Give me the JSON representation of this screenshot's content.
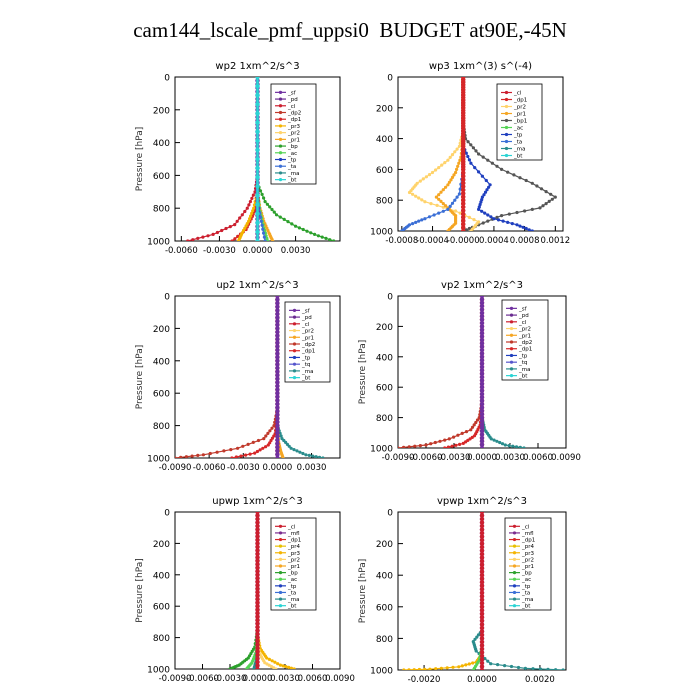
{
  "title": "cam144_lscale_pmf_uppsi0  BUDGET at90E,-45N",
  "colors": {
    "sf": "#7030a0",
    "pd": "#6a2c91",
    "cl": "#cc1f2f",
    "dp2": "#c0392b",
    "dp1": "#d62728",
    "pr3": "#f4b400",
    "pr2": "#ffd36b",
    "pr1": "#f5a623",
    "pr4": "#e8c000",
    "bp": "#2ca02c",
    "ac": "#55d455",
    "tp": "#1f3fbf",
    "ta": "#3b6fd6",
    "ma": "#2a8c8c",
    "bt": "#2ad4d4",
    "mfl": "#7b2c8f",
    "tq": "#5555cc"
  },
  "chart_data": [
    {
      "type": "line",
      "title": "wp2  1xm^2/s^3",
      "ylabel": "Pressure [hPa]",
      "xlim": [
        -0.0065,
        0.0065
      ],
      "ylim": [
        1000,
        0
      ],
      "xticks": [
        -0.006,
        -0.003,
        0.0,
        0.003
      ],
      "xticklabels": [
        "-0.0060",
        "-0.0030",
        "0.0000",
        "0.0030"
      ],
      "yticks": [
        0,
        200,
        400,
        600,
        800,
        1000
      ],
      "yticklabels": [
        "0",
        "200",
        "400",
        "600",
        "800",
        "1000"
      ],
      "legend": [
        "_sf",
        "_pd",
        "_cl",
        "_dp2",
        "_dp1",
        "_pr3",
        "_pr2",
        "_pr1",
        "_bp",
        "_ac",
        "_tp",
        "_ta",
        "_ma",
        "_bt"
      ],
      "series": [
        {
          "name": "_cl",
          "x": [
            0,
            0,
            -0.0002,
            -0.0008,
            -0.0018,
            -0.0035,
            -0.0055
          ],
          "y": [
            0,
            600,
            700,
            800,
            900,
            960,
            1000
          ]
        },
        {
          "name": "_dp1",
          "x": [
            0,
            0,
            -0.0001,
            -0.0004,
            -0.0009,
            -0.002
          ],
          "y": [
            0,
            700,
            780,
            850,
            930,
            1000
          ]
        },
        {
          "name": "_pr3",
          "x": [
            0,
            0,
            -0.0003,
            -0.0007,
            -0.0012,
            -0.0015
          ],
          "y": [
            0,
            700,
            800,
            880,
            950,
            1000
          ]
        },
        {
          "name": "_pr1",
          "x": [
            0,
            0,
            0.0002,
            0.0005,
            0.0009,
            0.0012
          ],
          "y": [
            0,
            700,
            800,
            880,
            950,
            1000
          ]
        },
        {
          "name": "_bp",
          "x": [
            0,
            0,
            0.0006,
            0.0015,
            0.003,
            0.0045,
            0.006
          ],
          "y": [
            0,
            650,
            760,
            840,
            910,
            960,
            1000
          ]
        },
        {
          "name": "_ac",
          "x": [
            0,
            0,
            0.0002,
            0.0005,
            0.0008
          ],
          "y": [
            0,
            700,
            820,
            920,
            1000
          ]
        },
        {
          "name": "_ta",
          "x": [
            0,
            0,
            0.0003,
            0.0006
          ],
          "y": [
            0,
            750,
            880,
            1000
          ]
        },
        {
          "name": "_sf",
          "x": [
            0,
            0,
            0,
            0,
            0,
            0
          ],
          "y": [
            0,
            200,
            400,
            600,
            800,
            1000
          ]
        },
        {
          "name": "_bt",
          "x": [
            0,
            0,
            0
          ],
          "y": [
            0,
            500,
            1000
          ]
        }
      ]
    },
    {
      "type": "line",
      "title": "wp3  1xm^(3) s^(-4)",
      "ylabel": "",
      "xlim": [
        -0.00085,
        0.0013
      ],
      "ylim": [
        1000,
        0
      ],
      "xticks": [
        -0.0008,
        -0.0004,
        0.0,
        0.0004,
        0.0008,
        0.0012
      ],
      "xticklabels": [
        "-0.0008",
        "-0.0004",
        "-0.0000",
        "0.0004",
        "0.0008",
        "0.0012"
      ],
      "yticks": [
        0,
        200,
        400,
        600,
        800,
        1000
      ],
      "yticklabels": [
        "0",
        "200",
        "400",
        "600",
        "800",
        "1000"
      ],
      "legend": [
        "_cl",
        "_dp1",
        "_pr2",
        "_pr1",
        "_bp1",
        "_ac",
        "_tp",
        "_ta",
        "_ma",
        "_bt"
      ],
      "series": [
        {
          "name": "_bp1",
          "x": [
            0,
            0,
            3e-05,
            0.0002,
            0.0005,
            0.0009,
            0.0012,
            0.001,
            0.0005,
            0.0002,
            0.0
          ],
          "y": [
            0,
            300,
            400,
            500,
            600,
            690,
            780,
            850,
            900,
            960,
            1000
          ]
        },
        {
          "name": "_pr2",
          "x": [
            0,
            0,
            -5e-05,
            -0.0002,
            -0.0004,
            -0.0006,
            -0.0007,
            -0.0005,
            -0.0001,
            0.0002,
            0.0001
          ],
          "y": [
            0,
            350,
            450,
            540,
            620,
            690,
            750,
            810,
            870,
            940,
            1000
          ]
        },
        {
          "name": "_pr1",
          "x": [
            0,
            0,
            -3e-05,
            -0.0001,
            -0.0002,
            -0.00035,
            -0.0002,
            -0.0001,
            -0.0001,
            -0.0002
          ],
          "y": [
            0,
            400,
            520,
            620,
            700,
            780,
            850,
            900,
            950,
            1000
          ]
        },
        {
          "name": "_tp",
          "x": [
            0,
            0,
            0.0001,
            0.00035,
            0.00025,
            0.0002,
            0.0004,
            0.0007,
            0.0009
          ],
          "y": [
            0,
            450,
            560,
            700,
            780,
            860,
            920,
            960,
            1000
          ]
        },
        {
          "name": "_ta",
          "x": [
            0,
            0,
            -5e-05,
            -0.0002,
            -0.0005,
            -0.0007,
            -0.0008
          ],
          "y": [
            0,
            600,
            760,
            860,
            920,
            960,
            1000
          ]
        },
        {
          "name": "_cl",
          "x": [
            0,
            0,
            0,
            0,
            0,
            0,
            0
          ],
          "y": [
            0,
            150,
            300,
            450,
            600,
            800,
            1000
          ]
        },
        {
          "name": "_dp1",
          "x": [
            0,
            0,
            0,
            0,
            0,
            0,
            0
          ],
          "y": [
            0,
            150,
            300,
            450,
            600,
            800,
            1000
          ]
        }
      ]
    },
    {
      "type": "line",
      "title": "up2  1xm^2/s^3",
      "ylabel": "Pressure [hPa]",
      "xlim": [
        -0.009,
        0.0055
      ],
      "ylim": [
        1000,
        0
      ],
      "xticks": [
        -0.009,
        -0.006,
        -0.003,
        0.0,
        0.003
      ],
      "xticklabels": [
        "-0.0090",
        "-0.0060",
        "-0.0030",
        "0.0000",
        "0.0030"
      ],
      "yticks": [
        0,
        200,
        400,
        600,
        800,
        1000
      ],
      "yticklabels": [
        "0",
        "200",
        "400",
        "600",
        "800",
        "1000"
      ],
      "legend": [
        "_sf",
        "_pd",
        "_cl",
        "_pr2",
        "_pr1",
        "_dp2",
        "_dp1",
        "_tp",
        "_tq",
        "_ma",
        "_bt"
      ],
      "series": [
        {
          "name": "_dp2",
          "x": [
            0,
            0,
            -0.0003,
            -0.0012,
            -0.0035,
            -0.0065,
            -0.009
          ],
          "y": [
            0,
            700,
            800,
            880,
            940,
            980,
            1000
          ]
        },
        {
          "name": "_dp1",
          "x": [
            0,
            0,
            -0.0002,
            -0.0008,
            -0.002,
            -0.004
          ],
          "y": [
            0,
            750,
            850,
            920,
            970,
            1000
          ]
        },
        {
          "name": "_ma",
          "x": [
            0,
            0,
            0.0004,
            0.0012,
            0.0025,
            0.004
          ],
          "y": [
            0,
            800,
            880,
            940,
            980,
            1000
          ]
        },
        {
          "name": "_pr1",
          "x": [
            0,
            0,
            0.0001,
            0.0003,
            0.0005
          ],
          "y": [
            0,
            800,
            900,
            960,
            1000
          ]
        },
        {
          "name": "_cl",
          "x": [
            0,
            0,
            0,
            0,
            0,
            0
          ],
          "y": [
            0,
            200,
            400,
            600,
            800,
            1000
          ]
        },
        {
          "name": "_sf",
          "x": [
            0,
            0,
            0,
            0,
            0,
            0
          ],
          "y": [
            0,
            200,
            400,
            600,
            800,
            1000
          ]
        }
      ]
    },
    {
      "type": "line",
      "title": "vp2  1xm^2/s^3",
      "ylabel": "Pressure [hPa]",
      "xlim": [
        -0.009,
        0.009
      ],
      "ylim": [
        1000,
        0
      ],
      "xticks": [
        -0.009,
        -0.006,
        -0.003,
        0.0,
        0.003,
        0.006,
        0.009
      ],
      "xticklabels": [
        "-0.0090",
        "-0.0060",
        "-0.0030",
        "0.0000",
        "0.0030",
        "0.0060",
        "0.0090"
      ],
      "yticks": [
        0,
        200,
        400,
        600,
        800,
        1000
      ],
      "yticklabels": [
        "0",
        "200",
        "400",
        "600",
        "800",
        "1000"
      ],
      "legend": [
        "_sf",
        "_pd",
        "_cl",
        "_pr2",
        "_pr1",
        "_dp2",
        "_dp1",
        "_tp",
        "_tq",
        "_ma",
        "_bt"
      ],
      "series": [
        {
          "name": "_dp2",
          "x": [
            0,
            0,
            -0.0003,
            -0.0012,
            -0.0035,
            -0.006,
            -0.009
          ],
          "y": [
            0,
            700,
            800,
            880,
            940,
            980,
            1000
          ]
        },
        {
          "name": "_dp1",
          "x": [
            0,
            0,
            -0.0002,
            -0.0008,
            -0.002,
            -0.004
          ],
          "y": [
            0,
            750,
            850,
            920,
            970,
            1000
          ]
        },
        {
          "name": "_ma",
          "x": [
            0,
            0,
            0.0003,
            0.001,
            0.0025,
            0.0045
          ],
          "y": [
            0,
            800,
            880,
            940,
            980,
            1000
          ]
        },
        {
          "name": "_cl",
          "x": [
            0,
            0,
            0,
            0,
            0,
            0
          ],
          "y": [
            0,
            200,
            400,
            600,
            800,
            1000
          ]
        },
        {
          "name": "_sf",
          "x": [
            0,
            0,
            0,
            0,
            0,
            0
          ],
          "y": [
            0,
            200,
            400,
            600,
            800,
            1000
          ]
        }
      ]
    },
    {
      "type": "line",
      "title": "upwp  1xm^2/s^3",
      "ylabel": "Pressure [hPa]",
      "xlim": [
        -0.009,
        0.009
      ],
      "ylim": [
        1000,
        0
      ],
      "xticks": [
        -0.009,
        -0.006,
        -0.003,
        0.0,
        0.003,
        0.006,
        0.009
      ],
      "xticklabels": [
        "-0.0090",
        "-0.0060",
        "-0.0030",
        "0.0000",
        "0.0030",
        "0.0060",
        "0.0090"
      ],
      "yticks": [
        0,
        200,
        400,
        600,
        800,
        1000
      ],
      "yticklabels": [
        "0",
        "200",
        "400",
        "600",
        "800",
        "1000"
      ],
      "legend": [
        "_cl",
        "_mfl",
        "_dp1",
        "_pr4",
        "_pr3",
        "_pr2",
        "_pr1",
        "_bp",
        "_ac",
        "_tp",
        "_ta",
        "_ma",
        "_bt"
      ],
      "series": [
        {
          "name": "_pr3",
          "x": [
            0,
            0,
            0.0003,
            0.001,
            0.0025,
            0.004
          ],
          "y": [
            0,
            780,
            870,
            930,
            975,
            1000
          ]
        },
        {
          "name": "_pr2",
          "x": [
            0,
            0,
            0.0002,
            0.0008,
            0.002
          ],
          "y": [
            0,
            800,
            900,
            960,
            1000
          ]
        },
        {
          "name": "_bp",
          "x": [
            0,
            0,
            -0.0003,
            -0.001,
            -0.002,
            -0.003
          ],
          "y": [
            0,
            750,
            860,
            930,
            975,
            1000
          ]
        },
        {
          "name": "_ac",
          "x": [
            0,
            0,
            -0.0002,
            -0.0006,
            -0.0012
          ],
          "y": [
            0,
            800,
            900,
            960,
            1000
          ]
        },
        {
          "name": "_ma",
          "x": [
            0,
            0,
            -0.0001,
            -0.0004
          ],
          "y": [
            0,
            850,
            940,
            1000
          ]
        },
        {
          "name": "_mfl",
          "x": [
            0,
            0,
            0,
            0,
            0,
            0
          ],
          "y": [
            0,
            200,
            400,
            600,
            800,
            1000
          ]
        },
        {
          "name": "_cl",
          "x": [
            0,
            0,
            0,
            0,
            0,
            0
          ],
          "y": [
            0,
            200,
            400,
            600,
            800,
            1000
          ]
        }
      ]
    },
    {
      "type": "line",
      "title": "vpwp  1xm^2/s^3",
      "ylabel": "Pressure [hPa]",
      "xlim": [
        -0.0029,
        0.0029
      ],
      "ylim": [
        1000,
        0
      ],
      "xticks": [
        -0.002,
        0.0,
        0.002
      ],
      "xticklabels": [
        "-0.0020",
        "0.0000",
        "0.0020"
      ],
      "yticks": [
        0,
        200,
        400,
        600,
        800,
        1000
      ],
      "yticklabels": [
        "0",
        "200",
        "400",
        "600",
        "800",
        "1000"
      ],
      "legend": [
        "_cl",
        "_mfl",
        "_dp1",
        "_pr4",
        "_pr3",
        "_pr2",
        "_pr1",
        "_bp",
        "_ac",
        "_tp",
        "_ta",
        "_ma",
        "_bt"
      ],
      "series": [
        {
          "name": "_pr3",
          "x": [
            0,
            0,
            -0.0002,
            -0.0008,
            -0.0018,
            -0.0027
          ],
          "y": [
            0,
            900,
            950,
            980,
            995,
            1000
          ]
        },
        {
          "name": "_ma",
          "x": [
            0,
            0,
            -0.0003,
            -0.0002,
            0.0003,
            0.0015,
            0.0028
          ],
          "y": [
            0,
            750,
            820,
            880,
            960,
            990,
            1000
          ]
        },
        {
          "name": "_ac",
          "x": [
            0,
            0,
            -0.0001,
            -0.0003
          ],
          "y": [
            0,
            850,
            940,
            1000
          ]
        },
        {
          "name": "_mfl",
          "x": [
            0,
            0,
            0,
            0,
            0,
            0
          ],
          "y": [
            0,
            200,
            400,
            600,
            800,
            1000
          ]
        },
        {
          "name": "_cl",
          "x": [
            0,
            0,
            0,
            0,
            0,
            0
          ],
          "y": [
            0,
            200,
            400,
            600,
            800,
            1000
          ]
        }
      ]
    }
  ]
}
